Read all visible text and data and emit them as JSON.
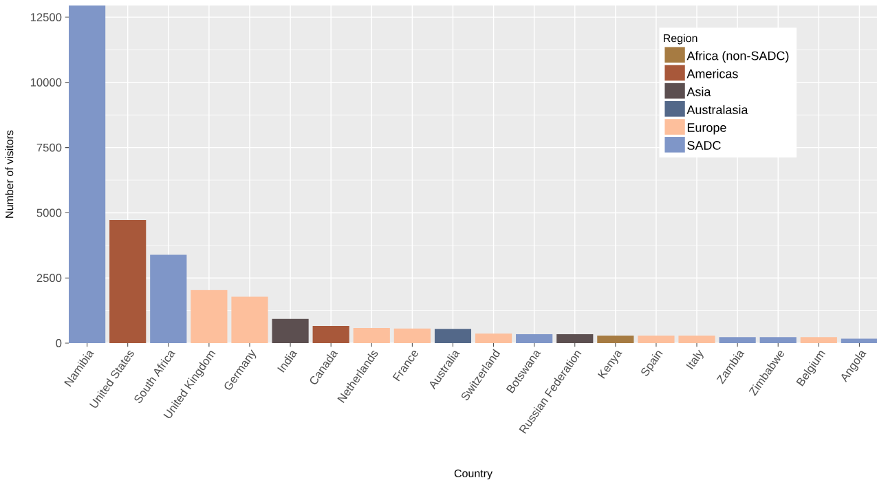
{
  "chart_data": {
    "type": "bar",
    "xlabel": "Country",
    "ylabel": "Number of visitors",
    "legend_title": "Region",
    "categories": [
      "Namibia",
      "United States",
      "South Africa",
      "United Kingdom",
      "Germany",
      "India",
      "Canada",
      "Netherlands",
      "France",
      "Australia",
      "Switzerland",
      "Botswana",
      "Russian Federation",
      "Kenya",
      "Spain",
      "Italy",
      "Zambia",
      "Zimbabwe",
      "Belgium",
      "Angola"
    ],
    "series": [
      {
        "name": "Africa (non-SADC)",
        "color": "#a67b42",
        "values": [
          null,
          null,
          null,
          null,
          null,
          null,
          null,
          null,
          null,
          null,
          null,
          null,
          null,
          290,
          null,
          null,
          null,
          null,
          null,
          null
        ]
      },
      {
        "name": "Americas",
        "color": "#a8583a",
        "values": [
          null,
          4720,
          null,
          null,
          null,
          null,
          660,
          null,
          null,
          null,
          null,
          null,
          null,
          null,
          null,
          null,
          null,
          null,
          null,
          null
        ]
      },
      {
        "name": "Asia",
        "color": "#5c4f50",
        "values": [
          null,
          null,
          null,
          null,
          null,
          930,
          null,
          null,
          null,
          null,
          null,
          null,
          340,
          null,
          null,
          null,
          null,
          null,
          null,
          null
        ]
      },
      {
        "name": "Australasia",
        "color": "#536889",
        "values": [
          null,
          null,
          null,
          null,
          null,
          null,
          null,
          null,
          null,
          550,
          null,
          null,
          null,
          null,
          null,
          null,
          null,
          null,
          null,
          null
        ]
      },
      {
        "name": "Europe",
        "color": "#fdbf9c",
        "values": [
          null,
          null,
          null,
          2040,
          1780,
          null,
          null,
          580,
          560,
          null,
          370,
          null,
          null,
          null,
          290,
          290,
          null,
          null,
          230,
          null
        ]
      },
      {
        "name": "SADC",
        "color": "#7f96c8",
        "values": [
          12950,
          null,
          3390,
          null,
          null,
          null,
          null,
          null,
          null,
          null,
          null,
          340,
          null,
          null,
          null,
          null,
          230,
          230,
          null,
          170
        ]
      }
    ],
    "ylim": [
      0,
      12950
    ],
    "yticks": [
      0,
      2500,
      5000,
      7500,
      10000,
      12500
    ],
    "grid": true,
    "legend": "top right"
  }
}
